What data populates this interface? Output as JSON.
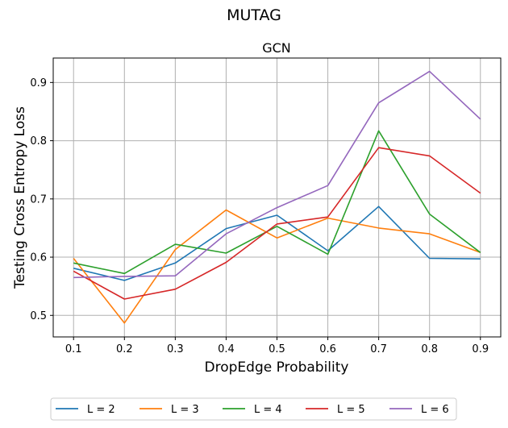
{
  "chart_data": {
    "type": "line",
    "suptitle": "MUTAG",
    "title": "GCN",
    "xlabel": "DropEdge Probability",
    "ylabel": "Testing Cross Entropy Loss",
    "x": [
      0.1,
      0.2,
      0.3,
      0.4,
      0.5,
      0.6,
      0.7,
      0.8,
      0.9
    ],
    "xticks": [
      "0.1",
      "0.2",
      "0.3",
      "0.4",
      "0.5",
      "0.6",
      "0.7",
      "0.8",
      "0.9"
    ],
    "yticks": [
      "0.5",
      "0.6",
      "0.7",
      "0.8",
      "0.9"
    ],
    "xlim": [
      0.06,
      0.94
    ],
    "ylim": [
      0.463,
      0.942
    ],
    "grid": true,
    "legend_position": "bottom-center",
    "series": [
      {
        "name": "L = 2",
        "color": "#1f77b4",
        "values": [
          0.581,
          0.56,
          0.59,
          0.649,
          0.672,
          0.611,
          0.687,
          0.598,
          0.597
        ]
      },
      {
        "name": "L = 3",
        "color": "#ff7f0e",
        "values": [
          0.598,
          0.487,
          0.613,
          0.681,
          0.633,
          0.667,
          0.65,
          0.64,
          0.608
        ]
      },
      {
        "name": "L = 4",
        "color": "#2ca02c",
        "values": [
          0.59,
          0.572,
          0.622,
          0.607,
          0.653,
          0.605,
          0.817,
          0.674,
          0.608
        ]
      },
      {
        "name": "L = 5",
        "color": "#d62728",
        "values": [
          0.576,
          0.528,
          0.545,
          0.591,
          0.657,
          0.669,
          0.788,
          0.774,
          0.71
        ]
      },
      {
        "name": "L = 6",
        "color": "#9467bd",
        "values": [
          0.565,
          0.567,
          0.568,
          0.64,
          0.685,
          0.723,
          0.865,
          0.919,
          0.837
        ]
      }
    ]
  }
}
